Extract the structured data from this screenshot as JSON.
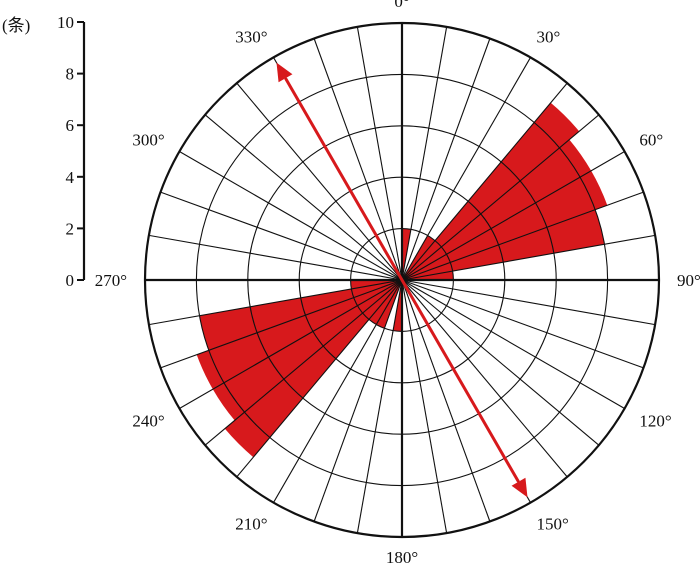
{
  "chart_data": {
    "type": "rose",
    "title": "",
    "unit_label": "(条)",
    "scale": {
      "min": 0,
      "max": 10,
      "ticks": [
        0,
        2,
        4,
        6,
        8,
        10
      ],
      "tick_labels": [
        "0",
        "2",
        "4",
        "6",
        "8",
        "10"
      ]
    },
    "bin_width_deg": 10,
    "angle_labels": [
      {
        "angle": 0,
        "text": "0°"
      },
      {
        "angle": 30,
        "text": "30°"
      },
      {
        "angle": 60,
        "text": "60°"
      },
      {
        "angle": 90,
        "text": "90°"
      },
      {
        "angle": 120,
        "text": "120°"
      },
      {
        "angle": 150,
        "text": "150°"
      },
      {
        "angle": 180,
        "text": "180°"
      },
      {
        "angle": 210,
        "text": "210°"
      },
      {
        "angle": 240,
        "text": "240°"
      },
      {
        "angle": 270,
        "text": "270°"
      },
      {
        "angle": 300,
        "text": "300°"
      },
      {
        "angle": 330,
        "text": "330°"
      }
    ],
    "bins": [
      {
        "from": 0,
        "to": 10,
        "value": 2
      },
      {
        "from": 30,
        "to": 40,
        "value": 2
      },
      {
        "from": 40,
        "to": 50,
        "value": 9
      },
      {
        "from": 50,
        "to": 60,
        "value": 8.5
      },
      {
        "from": 60,
        "to": 70,
        "value": 8.5
      },
      {
        "from": 70,
        "to": 80,
        "value": 8
      },
      {
        "from": 80,
        "to": 90,
        "value": 2
      },
      {
        "from": 180,
        "to": 190,
        "value": 2
      },
      {
        "from": 200,
        "to": 210,
        "value": 2
      },
      {
        "from": 210,
        "to": 220,
        "value": 2
      },
      {
        "from": 220,
        "to": 230,
        "value": 9
      },
      {
        "from": 230,
        "to": 240,
        "value": 8.5
      },
      {
        "from": 240,
        "to": 250,
        "value": 8.5
      },
      {
        "from": 250,
        "to": 260,
        "value": 8
      },
      {
        "from": 260,
        "to": 270,
        "value": 2
      }
    ],
    "arrow": {
      "from_angle": 330,
      "to_angle": 150
    },
    "colors": {
      "bins": "#d7191c",
      "arrow": "#d7191c",
      "grid": "#111111"
    },
    "grid": true
  }
}
